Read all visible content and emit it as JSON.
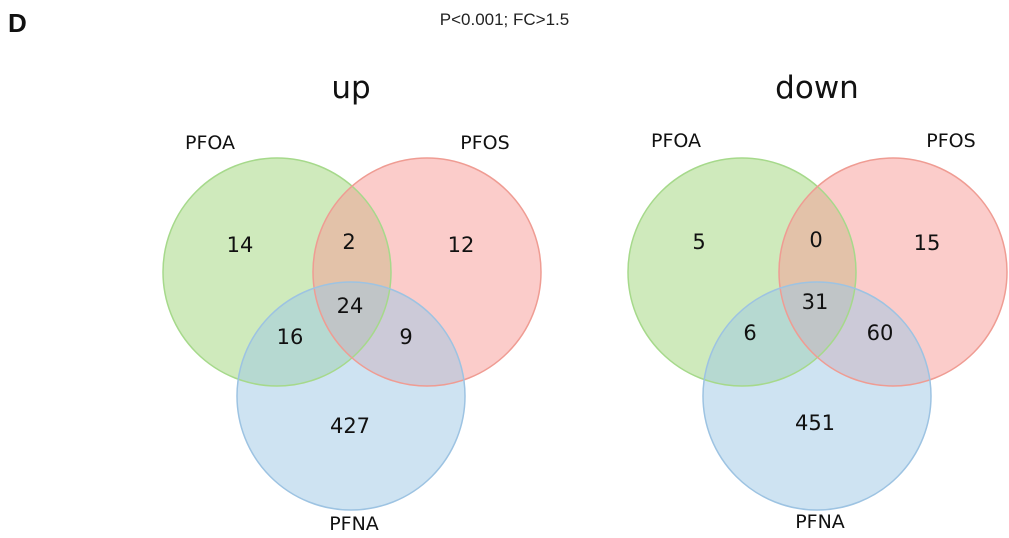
{
  "panel_letter": "D",
  "subtitle": "P<0.001; FC>1.5",
  "colors": {
    "set_a_fill": "#9fd67a",
    "set_a_stroke": "#a6d98b",
    "set_b_fill": "#f79a96",
    "set_b_stroke": "#ef9c93",
    "set_c_fill": "#9ec7e6",
    "set_c_stroke": "#9dc3e2"
  },
  "diagrams": [
    {
      "title": "up",
      "sets": [
        "PFOA",
        "PFOS",
        "PFNA"
      ],
      "counts": {
        "pfoa_only": "14",
        "pfoa_pfos": "2",
        "pfos_only": "12",
        "pfoa_pfna": "16",
        "all_three": "24",
        "pfos_pfna": "9",
        "pfna_only": "427"
      }
    },
    {
      "title": "down",
      "sets": [
        "PFOA",
        "PFOS",
        "PFNA"
      ],
      "counts": {
        "pfoa_only": "5",
        "pfoa_pfos": "0",
        "pfos_only": "15",
        "pfoa_pfna": "6",
        "all_three": "31",
        "pfos_pfna": "60",
        "pfna_only": "451"
      }
    }
  ]
}
